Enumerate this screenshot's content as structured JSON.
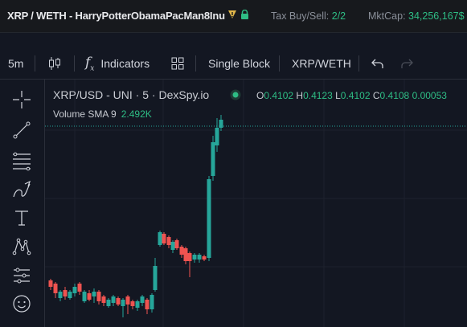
{
  "header": {
    "pair": "XRP / WETH - HarryPotterObamaPacMan8Inu",
    "tax_label": "Tax Buy/Sell:",
    "tax_value": "2/2",
    "mcap_label": "MktCap:",
    "mcap_value": "34,256,167$"
  },
  "toolbar": {
    "interval": "5m",
    "indicators": "Indicators",
    "single_block": "Single Block",
    "pair_toggle": "XRP/WETH"
  },
  "chart": {
    "legend": "XRP/USD - UNI · 5 · DexSpy.io",
    "ohlc": {
      "o_label": "O",
      "o": "0.4102",
      "h_label": "H",
      "h": "0.4123",
      "l_label": "L",
      "l": "0.4102",
      "c_label": "C",
      "c": "0.4108",
      "chg": "0.00053"
    },
    "volume_label": "Volume SMA 9",
    "volume_value": "2.492K"
  },
  "colors": {
    "up": "#26a69a",
    "down": "#ef5350",
    "background": "#131722",
    "accent": "#2ebd85"
  },
  "icons": [
    "warning-icon",
    "lock-icon",
    "candles-icon",
    "fx-icon",
    "templates-icon",
    "undo-icon",
    "redo-icon",
    "crosshair-icon",
    "trendline-icon",
    "fib-icon",
    "brush-icon",
    "text-icon",
    "pattern-icon",
    "measure-icon",
    "emoji-icon"
  ]
}
